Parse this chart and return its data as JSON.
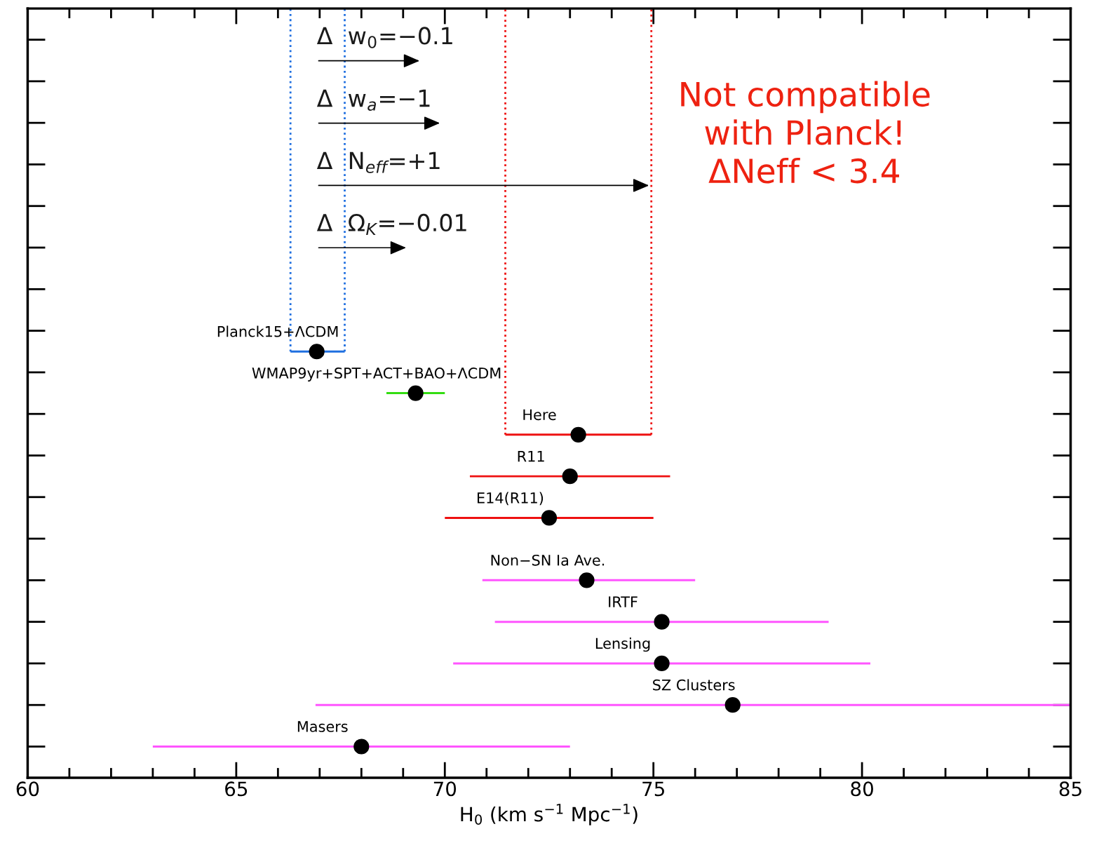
{
  "chart_data": {
    "type": "scatter",
    "orientation": "horizontal",
    "xlabel": "H$_{0}$ (km s$^{−1}$ Mpc$^{−1}$)",
    "xlim": [
      60,
      85
    ],
    "xticks": [
      60,
      {
        "value": 61,
        "label": null
      },
      {
        "value": 62,
        "label": null
      },
      {
        "value": 63,
        "label": null
      },
      {
        "value": 64,
        "label": null
      },
      65,
      {
        "value": 66,
        "label": null
      },
      {
        "value": 67,
        "label": null
      },
      {
        "value": 68,
        "label": null
      },
      {
        "value": 69,
        "label": null
      },
      70,
      {
        "value": 71,
        "label": null
      },
      {
        "value": 72,
        "label": null
      },
      {
        "value": 73,
        "label": null
      },
      {
        "value": 74,
        "label": null
      },
      75,
      {
        "value": 76,
        "label": null
      },
      {
        "value": 77,
        "label": null
      },
      {
        "value": 78,
        "label": null
      },
      {
        "value": 79,
        "label": null
      },
      80,
      {
        "value": 81,
        "label": null
      },
      {
        "value": 82,
        "label": null
      },
      {
        "value": 83,
        "label": null
      },
      {
        "value": 84,
        "label": null
      },
      85
    ],
    "tick_labels": "x",
    "grid": false,
    "marker": "circle",
    "categories": [
      null,
      null,
      null,
      null,
      null,
      null,
      null,
      null,
      null,
      null,
      null,
      null,
      null,
      null,
      null,
      null,
      null,
      null,
      null,
      null,
      null,
      null,
      null,
      null,
      null,
      null,
      null,
      null,
      null,
      null,
      null,
      null,
      null,
      null,
      null,
      null,
      null
    ],
    "series": [
      {
        "type": "bar",
        "values": [
          null,
          null,
          null,
          null,
          null,
          null,
          null,
          null,
          null,
          null,
          null,
          null,
          null,
          null,
          null,
          null,
          1.3,
          null,
          1.4,
          null,
          3.5,
          null,
          4.8,
          null,
          5,
          null,
          null,
          5.1,
          null,
          8,
          null,
          10,
          null,
          18.1,
          null,
          10,
          null
        ],
        "base": [
          null,
          null,
          null,
          null,
          null,
          null,
          null,
          null,
          null,
          null,
          null,
          null,
          null,
          null,
          null,
          null,
          66.3,
          null,
          68.6,
          null,
          71.45,
          null,
          70.6,
          null,
          70.0,
          null,
          null,
          70.9,
          null,
          71.2,
          null,
          70.2,
          null,
          66.9,
          null,
          63.0,
          null
        ],
        "colors": [
          null,
          null,
          null,
          null,
          null,
          null,
          null,
          null,
          null,
          null,
          null,
          null,
          null,
          null,
          null,
          null,
          "#1f6fe0",
          null,
          "#33dd11",
          null,
          "#ee1111",
          null,
          "#ee1111",
          null,
          "#ee1111",
          null,
          null,
          "#ff55ff",
          null,
          "#ff55ff",
          null,
          "#ff55ff",
          null,
          "#ff55ff",
          null,
          "#ff55ff",
          null
        ]
      },
      {
        "name": "Planck15+ΛCDM",
        "color": "#000000",
        "values": [
          null,
          null,
          null,
          null,
          null,
          null,
          null,
          null,
          null,
          null,
          null,
          null,
          null,
          null,
          null,
          null,
          66.93,
          null,
          null,
          null,
          null,
          null,
          null,
          null,
          null,
          null,
          null,
          null,
          null,
          null,
          null,
          null,
          null,
          null,
          null,
          null,
          null
        ]
      },
      {
        "name": "WMAP9yr+SPT+ACT+BAO+ΛCDM",
        "color": "#000000",
        "values": [
          null,
          null,
          null,
          null,
          null,
          null,
          null,
          null,
          null,
          null,
          null,
          null,
          null,
          null,
          null,
          null,
          null,
          null,
          69.3,
          null,
          null,
          null,
          null,
          null,
          null,
          null,
          null,
          null,
          null,
          null,
          null,
          null,
          null,
          null,
          null,
          null,
          null
        ]
      },
      {
        "name": "Here",
        "color": "#000000",
        "values": [
          null,
          null,
          null,
          null,
          null,
          null,
          null,
          null,
          null,
          null,
          null,
          null,
          null,
          null,
          null,
          null,
          null,
          null,
          null,
          null,
          73.2,
          null,
          null,
          null,
          null,
          null,
          null,
          null,
          null,
          null,
          null,
          null,
          null,
          null,
          null,
          null,
          null
        ]
      },
      {
        "name": "R11",
        "color": "#000000",
        "values": [
          null,
          null,
          null,
          null,
          null,
          null,
          null,
          null,
          null,
          null,
          null,
          null,
          null,
          null,
          null,
          null,
          null,
          null,
          null,
          null,
          null,
          null,
          73.0,
          null,
          null,
          null,
          null,
          null,
          null,
          null,
          null,
          null,
          null,
          null,
          null,
          null,
          null
        ]
      },
      {
        "name": "E14(R11)",
        "color": "#000000",
        "values": [
          null,
          null,
          null,
          null,
          null,
          null,
          null,
          null,
          null,
          null,
          null,
          null,
          null,
          null,
          null,
          null,
          null,
          null,
          null,
          null,
          null,
          null,
          null,
          null,
          72.5,
          null,
          null,
          null,
          null,
          null,
          null,
          null,
          null,
          null,
          null,
          null,
          null
        ]
      },
      {
        "name": "Non−SN Ia Ave.",
        "color": "#000000",
        "values": [
          null,
          null,
          null,
          null,
          null,
          null,
          null,
          null,
          null,
          null,
          null,
          null,
          null,
          null,
          null,
          null,
          null,
          null,
          null,
          null,
          null,
          null,
          null,
          null,
          null,
          null,
          null,
          73.4,
          null,
          null,
          null,
          null,
          null,
          null,
          null,
          null,
          null
        ]
      },
      {
        "name": "IRTF",
        "color": "#000000",
        "values": [
          null,
          null,
          null,
          null,
          null,
          null,
          null,
          null,
          null,
          null,
          null,
          null,
          null,
          null,
          null,
          null,
          null,
          null,
          null,
          null,
          null,
          null,
          null,
          null,
          null,
          null,
          null,
          null,
          null,
          75.2,
          null,
          null,
          null,
          null,
          null,
          null,
          null
        ]
      },
      {
        "name": "Lensing",
        "color": "#000000",
        "values": [
          null,
          null,
          null,
          null,
          null,
          null,
          null,
          null,
          null,
          null,
          null,
          null,
          null,
          null,
          null,
          null,
          null,
          null,
          null,
          null,
          null,
          null,
          null,
          null,
          null,
          null,
          null,
          null,
          null,
          null,
          null,
          75.2,
          null,
          null,
          null,
          null,
          null
        ]
      },
      {
        "name": "SZ Clusters",
        "color": "#000000",
        "values": [
          null,
          null,
          null,
          null,
          null,
          null,
          null,
          null,
          null,
          null,
          null,
          null,
          null,
          null,
          null,
          null,
          null,
          null,
          null,
          null,
          null,
          null,
          null,
          null,
          null,
          null,
          null,
          null,
          null,
          null,
          null,
          null,
          null,
          76.9,
          null,
          null,
          null
        ]
      },
      {
        "name": "Masers",
        "color": "#000000",
        "values": [
          null,
          null,
          null,
          null,
          null,
          null,
          null,
          null,
          null,
          null,
          null,
          null,
          null,
          null,
          null,
          null,
          null,
          null,
          null,
          null,
          null,
          null,
          null,
          null,
          null,
          null,
          null,
          null,
          null,
          null,
          null,
          null,
          null,
          null,
          null,
          68.0,
          null
        ]
      }
    ],
    "ref_lines": [
      {
        "axis": "x",
        "value": 66.3,
        "color": "#1f6fe0",
        "line_style": "dotted"
      },
      {
        "axis": "x",
        "value": 67.6,
        "color": "#1f6fe0",
        "line_style": "dotted"
      },
      {
        "axis": "x",
        "value": 71.45,
        "color": "#ee1111",
        "line_style": "dotted"
      },
      {
        "axis": "x",
        "value": 74.95,
        "color": "#ee1111",
        "line_style": "dotted"
      }
    ],
    "annotations": [
      "Δ  w$_{0}$=−0.1",
      "Δ  w$_{a}$=−1",
      "Δ  N$_{eff}$=+1",
      "Δ  Ω$_{K}$=−0.01",
      "Not compatible\nwith Planck!\nΔNeff < 3.4"
    ]
  }
}
